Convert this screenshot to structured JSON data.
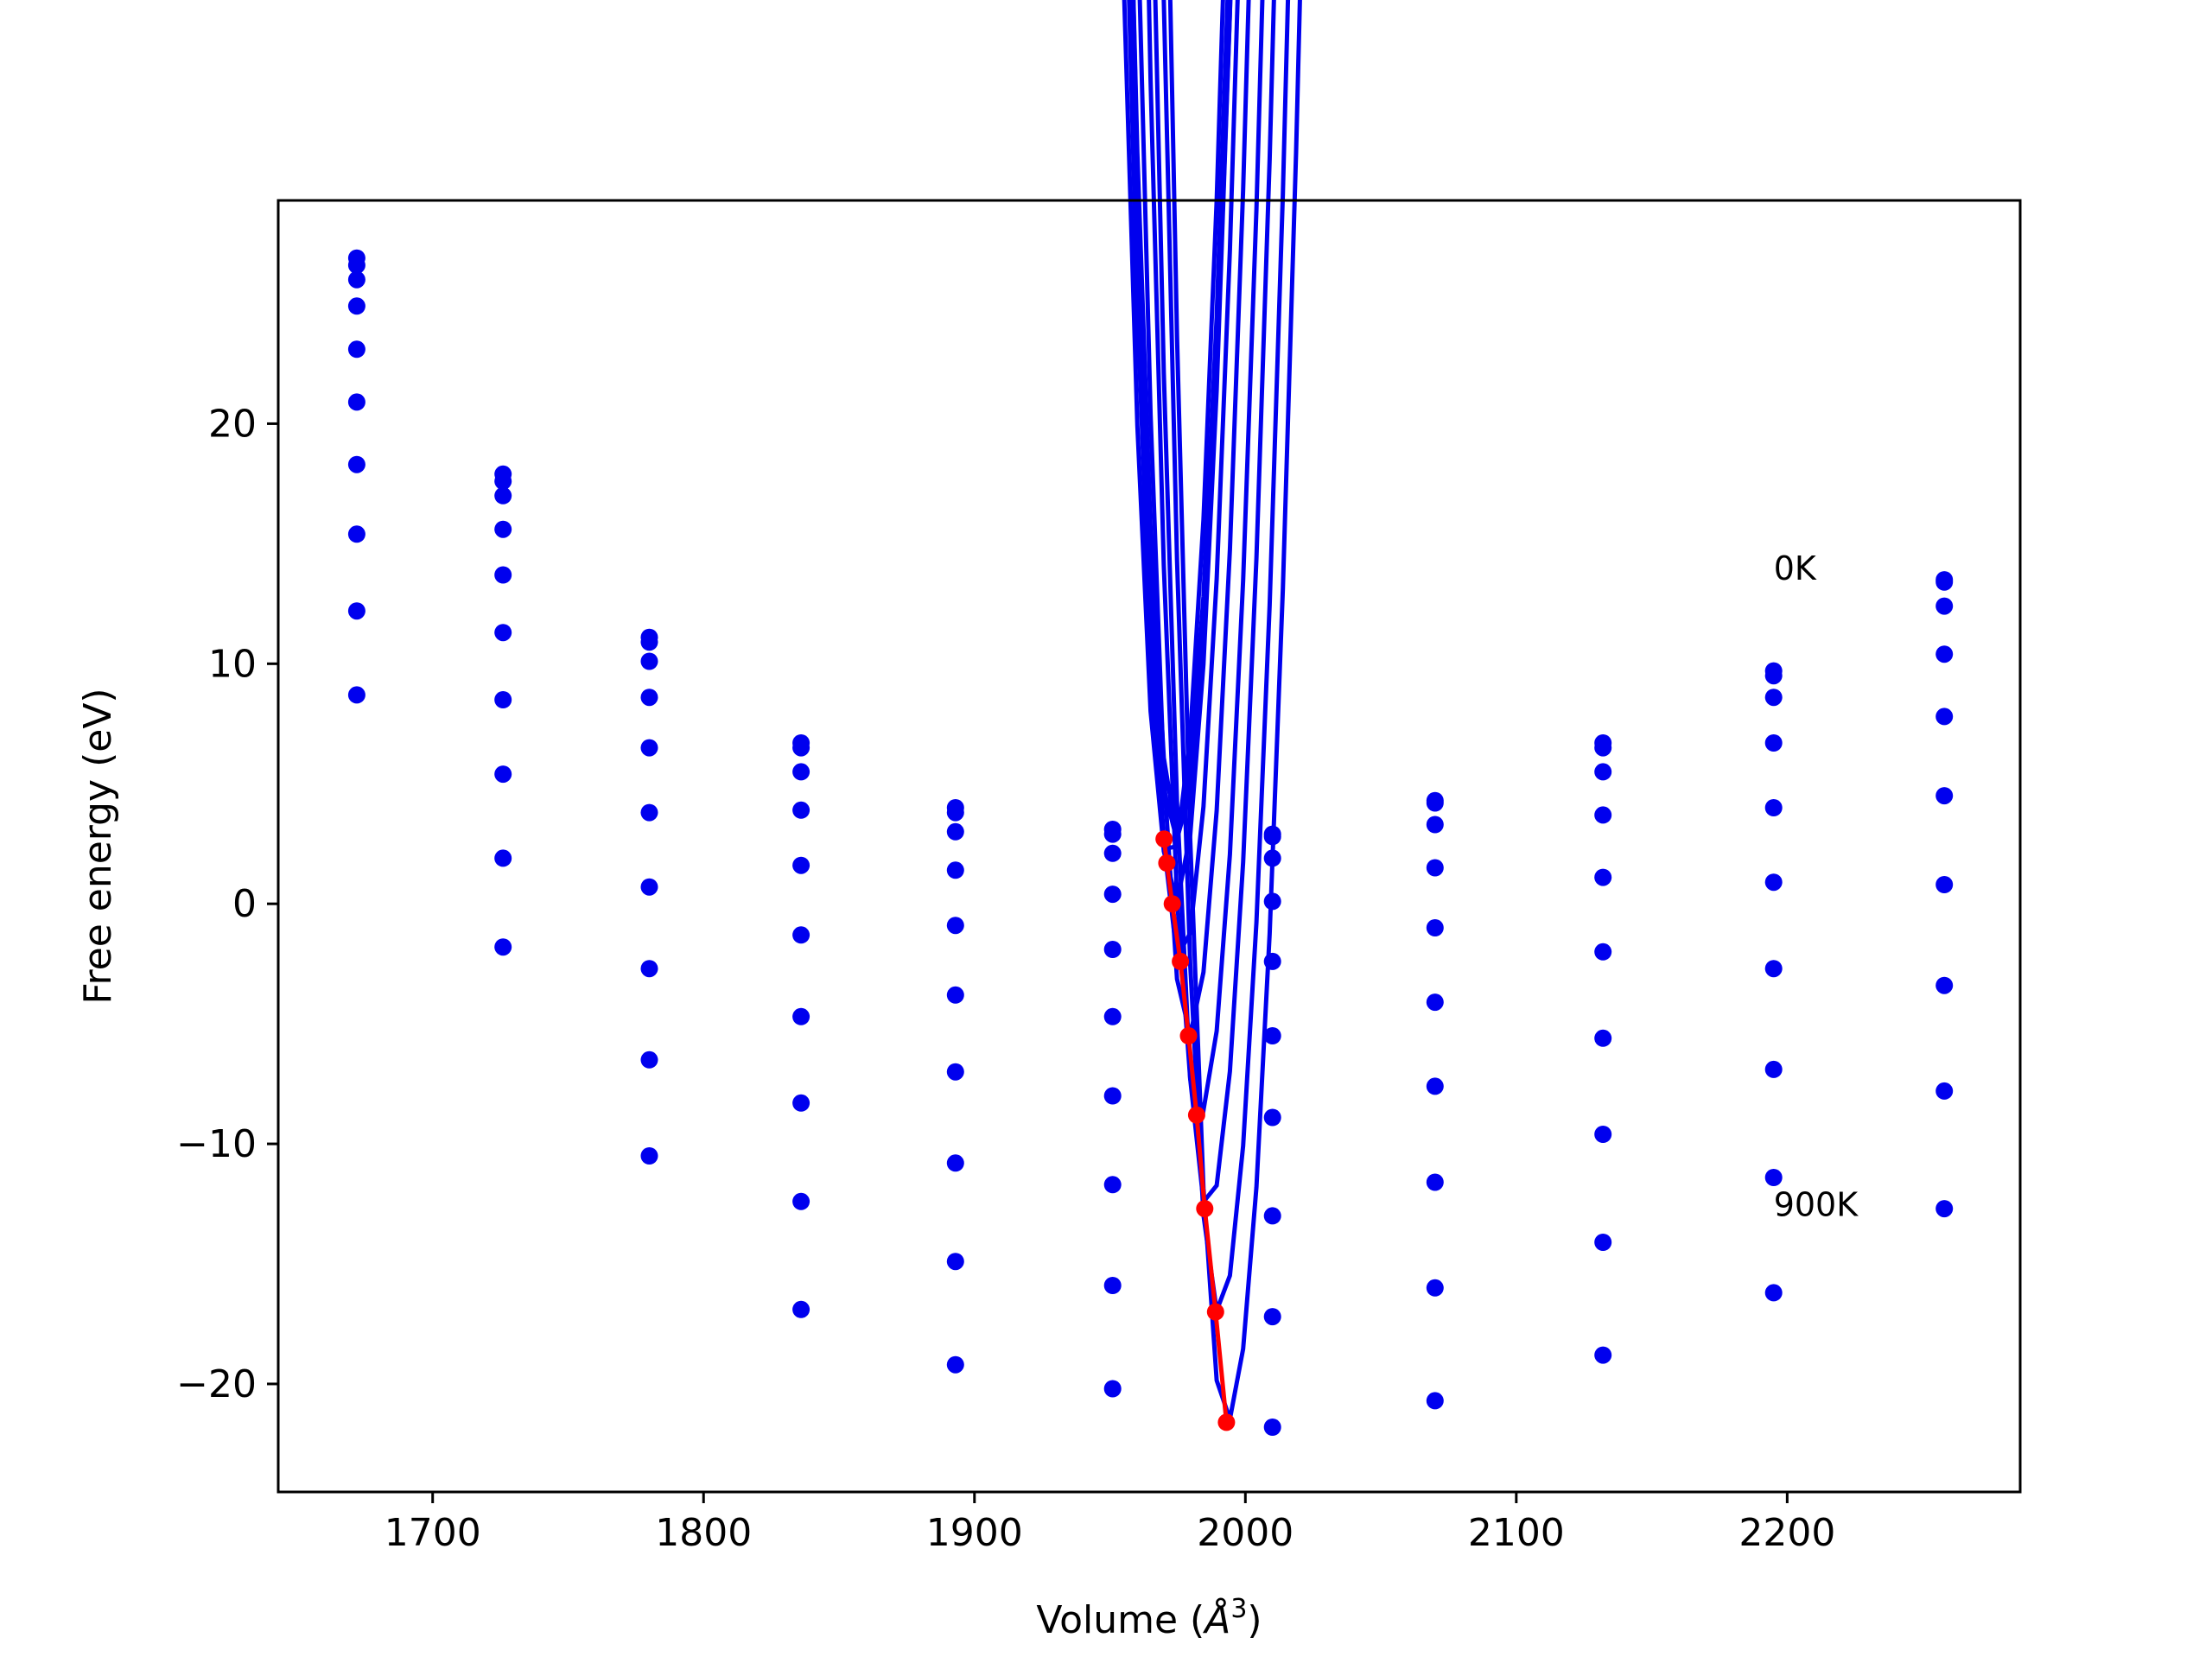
{
  "chart_data": {
    "type": "scatter",
    "title": "",
    "xlabel": "Volume",
    "xlabel_unit_html": "Å3",
    "ylabel": "Free energy (eV)",
    "xlim": [
      1643,
      2286
    ],
    "ylim": [
      -24.5,
      29.3
    ],
    "x_ticks": [
      1700,
      1800,
      1900,
      2000,
      2100,
      2200
    ],
    "x_tick_labels": [
      "1700",
      "1800",
      "1900",
      "2000",
      "2100",
      "2200"
    ],
    "y_ticks": [
      -20,
      -10,
      0,
      10,
      20
    ],
    "y_tick_labels": [
      "−20",
      "−10",
      "0",
      "10",
      "20"
    ],
    "grid": false,
    "legend": "none",
    "colors": {
      "curves": "#0000ee",
      "minimum_line": "#ff0000",
      "frame": "#000000"
    },
    "annotations": [
      {
        "text": "0K",
        "x": 2195,
        "y": 14.0
      },
      {
        "text": "900K",
        "x": 2195,
        "y": -12.5
      }
    ],
    "volumes": [
      1672,
      1726,
      1780,
      1836,
      1893,
      1951,
      2010,
      2070,
      2132,
      2195,
      2258
    ],
    "series": [
      {
        "points": [
          26.9,
          17.9,
          11.1,
          6.7,
          4.0,
          3.1,
          2.9,
          4.3,
          6.7,
          9.7,
          13.5
        ],
        "fit": {
          "v0": 1975,
          "f0": 2.7,
          "l": 0.000129,
          "r": 9.25e-05
        }
      },
      {
        "points": [
          26.6,
          17.6,
          10.9,
          6.5,
          3.8,
          2.9,
          2.8,
          4.2,
          6.5,
          9.5,
          13.4
        ],
        "fit": {
          "v0": 1974,
          "f0": 2.6,
          "l": 0.000128,
          "r": 9.2e-05
        }
      },
      {
        "points": [
          26.0,
          17.0,
          10.1,
          5.5,
          3.0,
          2.1,
          1.9,
          3.3,
          5.5,
          8.6,
          12.4
        ],
        "fit": {
          "v0": 1972,
          "f0": 1.7,
          "l": 0.000129,
          "r": 9.1e-05
        }
      },
      {
        "points": [
          24.9,
          15.6,
          8.6,
          3.9,
          1.4,
          0.4,
          0.1,
          1.5,
          3.7,
          6.7,
          10.4
        ],
        "fit": {
          "v0": 1974,
          "f0": 0.0,
          "l": 0.000129,
          "r": 9e-05
        }
      },
      {
        "points": [
          23.1,
          13.7,
          6.5,
          1.6,
          -0.9,
          -1.9,
          -2.4,
          -1.0,
          1.1,
          4.0,
          7.8
        ],
        "fit": {
          "v0": 1976,
          "f0": -2.4,
          "l": 0.000131,
          "r": 8.85e-05
        }
      },
      {
        "points": [
          20.9,
          11.3,
          3.8,
          -1.3,
          -3.8,
          -4.7,
          -5.5,
          -4.1,
          -2.0,
          0.9,
          4.5
        ],
        "fit": {
          "v0": 1979,
          "f0": -5.5,
          "l": 0.000132,
          "r": 8.65e-05
        }
      },
      {
        "points": [
          18.3,
          8.5,
          0.7,
          -4.7,
          -7.0,
          -8.0,
          -8.9,
          -7.6,
          -5.6,
          -2.7,
          0.8
        ],
        "fit": {
          "v0": 1983,
          "f0": -8.8,
          "l": 0.000133,
          "r": 8.5e-05
        }
      },
      {
        "points": [
          15.4,
          5.4,
          -2.7,
          -8.3,
          -10.8,
          -11.7,
          -13.0,
          -11.6,
          -9.6,
          -6.9,
          -3.4
        ],
        "fit": {
          "v0": 1986,
          "f0": -12.7,
          "l": 0.000134,
          "r": 8.3e-05
        }
      },
      {
        "points": [
          12.2,
          1.9,
          -6.5,
          -12.4,
          -14.9,
          -15.9,
          -17.2,
          -16.0,
          -14.1,
          -11.4,
          -7.8
        ],
        "fit": {
          "v0": 1990,
          "f0": -17.0,
          "l": 0.000135,
          "r": 8.2e-05
        }
      },
      {
        "points": [
          8.7,
          -1.8,
          -10.5,
          -16.9,
          -19.2,
          -20.2,
          -21.8,
          -20.7,
          -18.8,
          -16.2,
          -12.7
        ],
        "fit": {
          "v0": 1993,
          "f0": -21.6,
          "l": 0.000136,
          "r": 8e-05
        }
      }
    ],
    "minimum_line": {
      "x": [
        1970,
        1971,
        1973,
        1976,
        1979,
        1982,
        1985,
        1989,
        1993
      ],
      "y": [
        2.7,
        1.7,
        0.0,
        -2.4,
        -5.5,
        -8.8,
        -12.7,
        -17.0,
        -21.6
      ]
    }
  }
}
